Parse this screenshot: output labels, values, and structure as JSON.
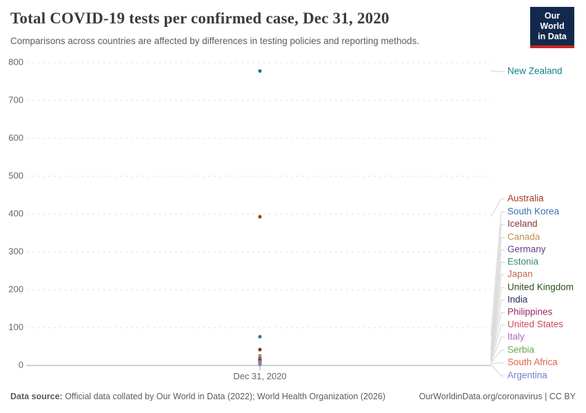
{
  "header": {
    "title": "Total COVID-19 tests per confirmed case, Dec 31, 2020",
    "subtitle": "Comparisons across countries are affected by differences in testing policies and reporting methods.",
    "logo": {
      "line1": "Our World",
      "line2": "in Data",
      "bg_color": "#12294d",
      "accent_color": "#ce261f"
    }
  },
  "footer": {
    "source_label": "Data source:",
    "source_text": " Official data collated by Our World in Data (2022); World Health Organization (2026)",
    "credit": "OurWorldinData.org/coronavirus | CC BY"
  },
  "chart_data": {
    "type": "scatter",
    "title": "Total COVID-19 tests per confirmed case, Dec 31, 2020",
    "xlabel": "",
    "ylabel": "",
    "x_tick_label": "Dec 31, 2020",
    "ylim": [
      0,
      800
    ],
    "yticks": [
      0,
      100,
      200,
      300,
      400,
      500,
      600,
      700,
      800
    ],
    "grid": "horizontal-dashed",
    "legend_position": "right-entity-labels",
    "grid_color": "#e2e2e2",
    "axis_color": "#a0a0a0",
    "connector_color": "#d9d9d9",
    "series": [
      {
        "name": "New Zealand",
        "value": 778,
        "color": "#11808e",
        "label_y": 104
      },
      {
        "name": "Australia",
        "value": 393,
        "color": "#a43d20",
        "label_y": 289
      },
      {
        "name": "South Korea",
        "value": 76,
        "color": "#3e6fb0",
        "label_y": 308
      },
      {
        "name": "Iceland",
        "value": 42,
        "color": "#883039",
        "label_y": 326
      },
      {
        "name": "Canada",
        "value": 26,
        "color": "#be9255",
        "label_y": 345
      },
      {
        "name": "Germany",
        "value": 19,
        "color": "#6d3e91",
        "label_y": 363
      },
      {
        "name": "Estonia",
        "value": 17,
        "color": "#3c8a68",
        "label_y": 381
      },
      {
        "name": "Japan",
        "value": 15,
        "color": "#be6a52",
        "label_y": 399
      },
      {
        "name": "United Kingdom",
        "value": 13,
        "color": "#2b4f1d",
        "label_y": 418
      },
      {
        "name": "India",
        "value": 12,
        "color": "#222e61",
        "label_y": 436
      },
      {
        "name": "Philippines",
        "value": 11,
        "color": "#9d2963",
        "label_y": 454
      },
      {
        "name": "United States",
        "value": 10,
        "color": "#d04a60",
        "label_y": 472
      },
      {
        "name": "Italy",
        "value": 9,
        "color": "#a76bc2",
        "label_y": 490
      },
      {
        "name": "Serbia",
        "value": 7,
        "color": "#6ca544",
        "label_y": 509
      },
      {
        "name": "South Africa",
        "value": 5,
        "color": "#e0604e",
        "label_y": 527
      },
      {
        "name": "Argentina",
        "value": 3,
        "color": "#6b87c4",
        "label_y": 546
      }
    ]
  }
}
